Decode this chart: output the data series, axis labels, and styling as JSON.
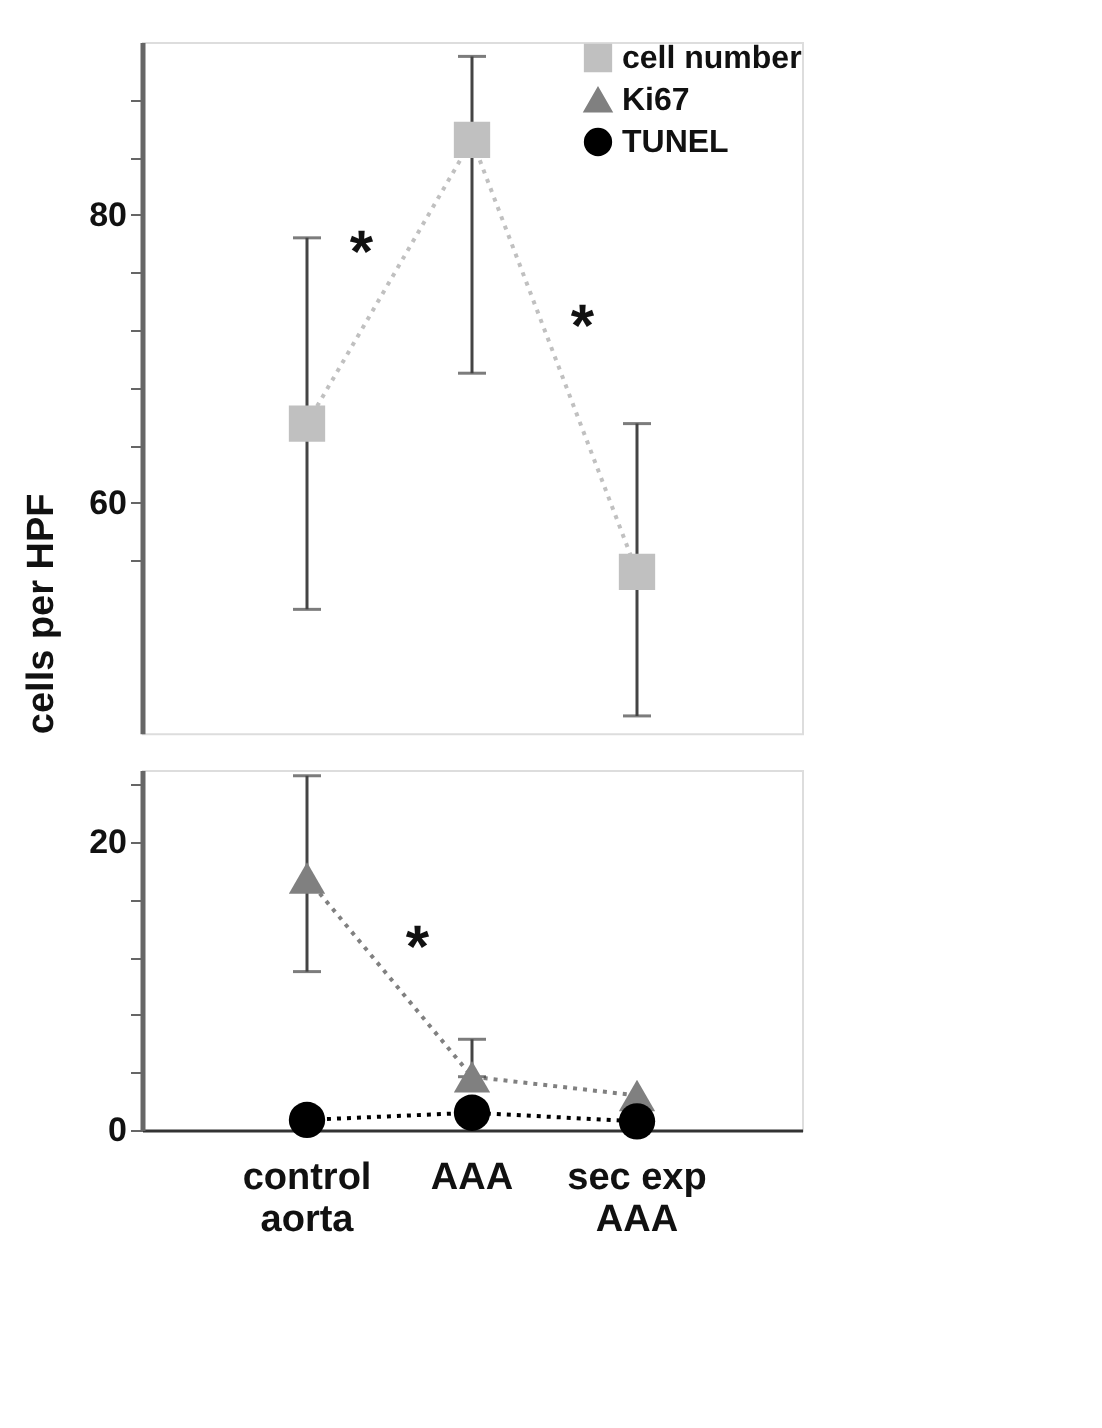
{
  "chart_data": [
    {
      "type": "line",
      "categories": [
        null,
        null,
        null
      ],
      "ylabel": "cells per HPF",
      "ylim": [
        44,
        92
      ],
      "yticks": [
        {
          "value": 56,
          "label": null
        },
        60,
        {
          "value": 64,
          "label": null
        },
        {
          "value": 68,
          "label": null
        },
        {
          "value": 72,
          "label": null
        },
        {
          "value": 76,
          "label": null
        },
        80,
        {
          "value": 84,
          "label": null
        },
        {
          "value": 88,
          "label": null
        }
      ],
      "tick_labels": "y",
      "legend": "top right",
      "line_style": "dotted",
      "grid": false,
      "series": [
        {
          "name": "cell number",
          "color": "#c0c0c0",
          "marker": "square",
          "values": [
            65.5,
            85.2,
            55.2
          ],
          "errors": [
            [
              52.6,
              78.4
            ],
            [
              69,
              91
            ],
            [
              45.2,
              65.5
            ]
          ]
        },
        {
          "name": "Ki67",
          "color": "#808080",
          "marker": "triangle",
          "values": [
            null,
            null,
            null
          ]
        },
        {
          "name": "TUNEL",
          "color": "#000000",
          "marker": "circle",
          "values": [
            null,
            null,
            null
          ]
        }
      ],
      "annotations": [
        "*",
        "*"
      ]
    },
    {
      "type": "line",
      "categories": [
        "control aorta",
        "AAA",
        "sec exp AAA"
      ],
      "ylim": [
        0,
        25
      ],
      "yticks": [
        0,
        {
          "value": 4,
          "label": null
        },
        {
          "value": 8,
          "label": null
        },
        {
          "value": 12,
          "label": null
        },
        {
          "value": 16,
          "label": null
        },
        20,
        {
          "value": 24,
          "label": null
        }
      ],
      "line_style": "dotted",
      "grid": false,
      "series": [
        {
          "color": "#808080",
          "marker": "triangle",
          "values": [
            17.5,
            3.7,
            2.4
          ],
          "errors": [
            [
              11,
              24.6
            ],
            [
              3.7,
              6.3
            ],
            null
          ]
        },
        {
          "color": "#000000",
          "marker": "circle",
          "values": [
            0.7,
            1.2,
            0.6
          ]
        }
      ],
      "annotations": [
        "*"
      ]
    }
  ]
}
